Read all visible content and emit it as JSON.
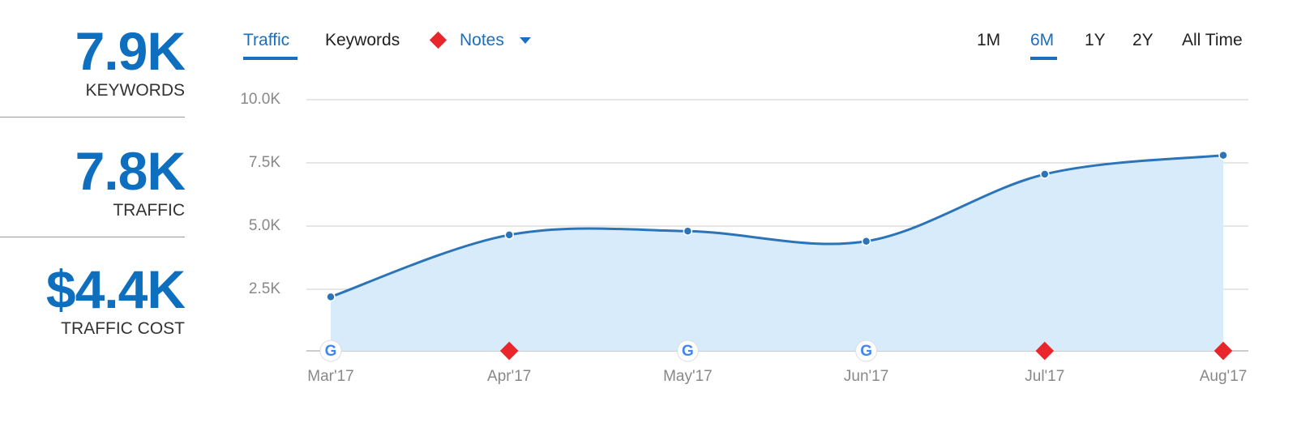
{
  "stats": [
    {
      "value": "7.9K",
      "label": "KEYWORDS"
    },
    {
      "value": "7.8K",
      "label": "TRAFFIC"
    },
    {
      "value": "$4.4K",
      "label": "TRAFFIC COST"
    }
  ],
  "tabs": [
    "Traffic",
    "Keywords",
    "Notes"
  ],
  "ranges": [
    "1M",
    "6M",
    "1Y",
    "2Y",
    "All Time"
  ],
  "chart_data": {
    "type": "line",
    "categories": [
      "Mar'17",
      "Apr'17",
      "May'17",
      "Jun'17",
      "Jul'17",
      "Aug'17"
    ],
    "values": [
      2200,
      4650,
      4800,
      4400,
      7050,
      7800
    ],
    "color": "#2b74b8",
    "area_color": "#d8ebfa",
    "ylim": [
      0,
      10000
    ],
    "yticks": [
      {
        "value": 2500,
        "label": "2.5K"
      },
      {
        "value": 5000,
        "label": "5.0K"
      },
      {
        "value": 7500,
        "label": "7.5K"
      },
      {
        "value": 10000,
        "label": "10.0K"
      }
    ],
    "grid": true
  }
}
